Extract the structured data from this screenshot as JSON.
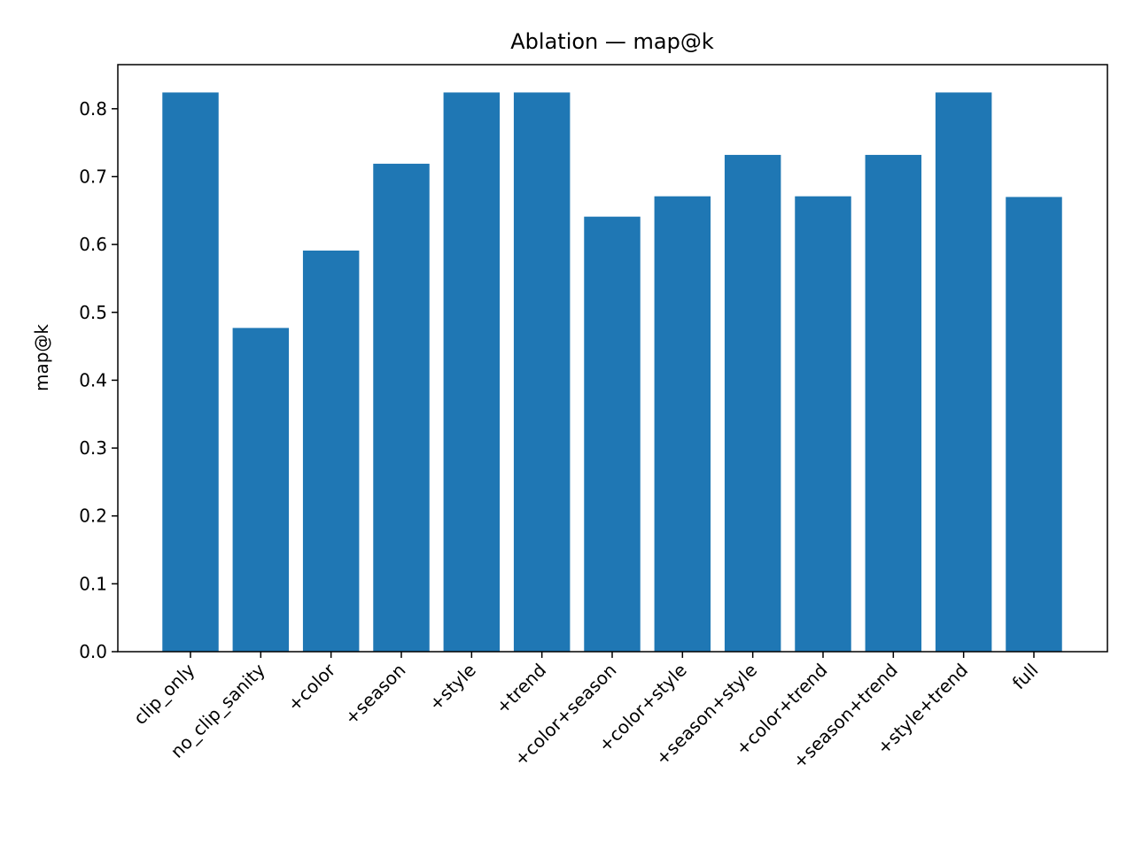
{
  "chart_data": {
    "type": "bar",
    "title": "Ablation — map@k",
    "xlabel": "",
    "ylabel": "map@k",
    "categories": [
      "clip_only",
      "no_clip_sanity",
      "+color",
      "+season",
      "+style",
      "+trend",
      "+color+season",
      "+color+style",
      "+season+style",
      "+color+trend",
      "+season+trend",
      "+style+trend",
      "full"
    ],
    "values": [
      0.824,
      0.477,
      0.591,
      0.719,
      0.824,
      0.824,
      0.641,
      0.671,
      0.732,
      0.671,
      0.732,
      0.824,
      0.67
    ],
    "ylim": [
      0,
      0.865
    ],
    "yticks": [
      "0.0",
      "0.1",
      "0.2",
      "0.3",
      "0.4",
      "0.5",
      "0.6",
      "0.7",
      "0.8"
    ],
    "bar_color": "#1f77b4",
    "grid": false,
    "legend": "none"
  }
}
